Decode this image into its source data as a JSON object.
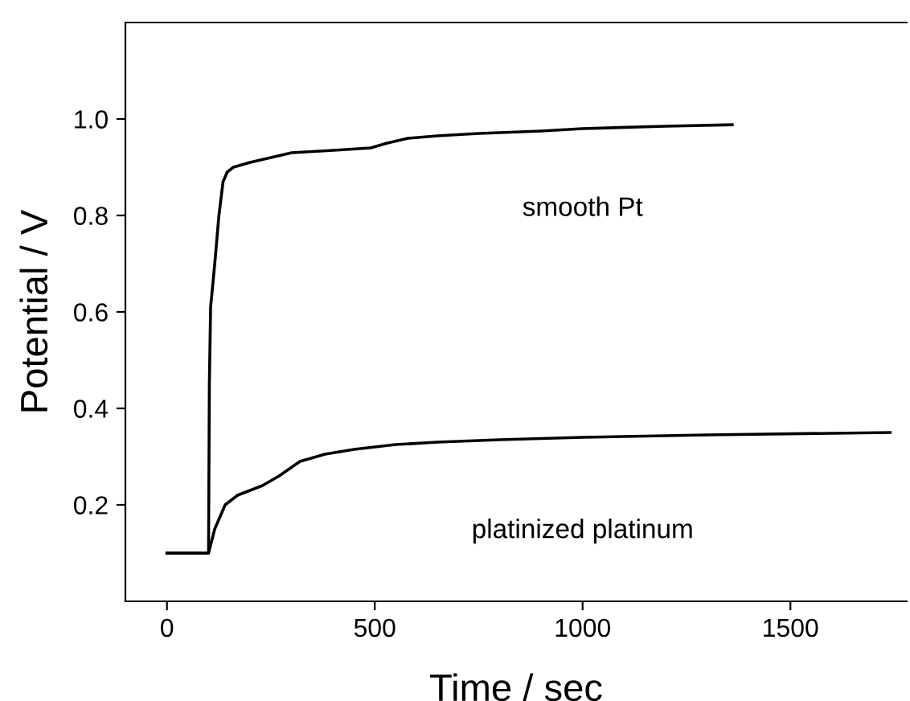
{
  "chart_data": {
    "type": "line",
    "xlabel": "Time / sec",
    "ylabel": "Potential / V",
    "xlim": [
      -100,
      1780
    ],
    "xticks": [
      0,
      500,
      1000,
      1500
    ],
    "ylim": [
      0,
      1.2
    ],
    "yticks": [
      0.2,
      0.4,
      0.6,
      0.8,
      {
        "value": 1.0,
        "label": "1.0"
      }
    ],
    "grid": false,
    "legend": false,
    "marker": "none",
    "line_style": "solid",
    "series": [
      {
        "name": "smooth Pt",
        "color": "#000000",
        "x": [
          0,
          100,
          102,
          105,
          115,
          125,
          135,
          145,
          160,
          200,
          250,
          300,
          400,
          490,
          530,
          580,
          650,
          750,
          900,
          1000,
          1200,
          1360
        ],
        "values": [
          0.1,
          0.1,
          0.45,
          0.61,
          0.7,
          0.8,
          0.87,
          0.89,
          0.9,
          0.91,
          0.92,
          0.93,
          0.935,
          0.94,
          0.95,
          0.96,
          0.965,
          0.97,
          0.975,
          0.98,
          0.985,
          0.988
        ]
      },
      {
        "name": "platinized platinum",
        "color": "#000000",
        "x": [
          0,
          100,
          115,
          140,
          170,
          230,
          270,
          320,
          380,
          450,
          550,
          650,
          800,
          1000,
          1300,
          1740
        ],
        "values": [
          0.1,
          0.1,
          0.15,
          0.2,
          0.22,
          0.24,
          0.26,
          0.29,
          0.305,
          0.315,
          0.325,
          0.33,
          0.335,
          0.34,
          0.345,
          0.35
        ]
      }
    ]
  }
}
